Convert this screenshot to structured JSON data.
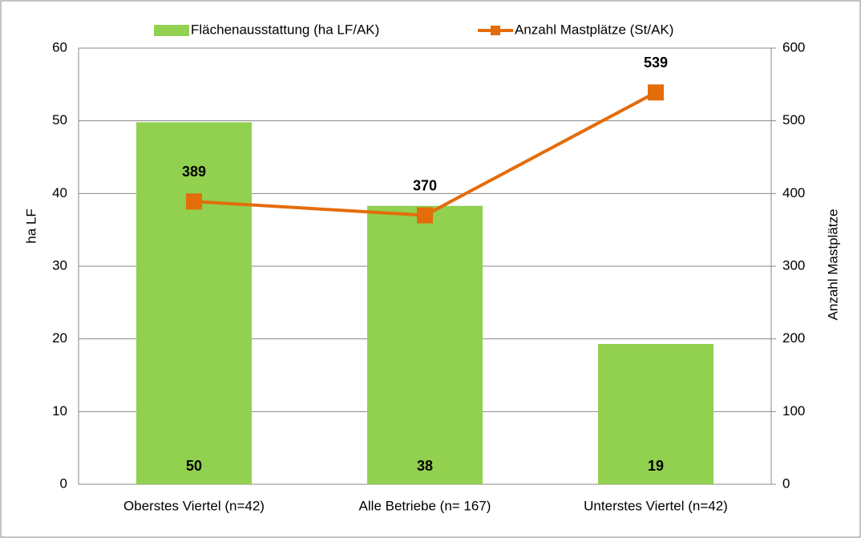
{
  "chart_data": {
    "type": "bar",
    "categories": [
      "Oberstes Viertel (n=42)",
      "Alle Betriebe (n= 167)",
      "Unterstes Viertel (n=42)"
    ],
    "series": [
      {
        "name": "Flächenausstattung (ha LF/AK)",
        "type": "bar",
        "color": "#92d050",
        "values": [
          49.8,
          38.3,
          19.3
        ],
        "value_labels": [
          "50",
          "38",
          "19"
        ]
      },
      {
        "name": "Anzahl Mastplätze (St/AK)",
        "type": "line",
        "axis": "y2",
        "color": "#e46c0a",
        "values": [
          389,
          370,
          539
        ]
      }
    ],
    "ylabel": "ha LF",
    "y2label": "Anzahl Mastplätze",
    "ylim": [
      0,
      60
    ],
    "yticks": [
      0,
      10,
      20,
      30,
      40,
      50,
      60
    ],
    "y2lim": [
      0,
      600
    ],
    "y2ticks": [
      0,
      100,
      200,
      300,
      400,
      500,
      600
    ],
    "grid": true,
    "legend": "top"
  }
}
